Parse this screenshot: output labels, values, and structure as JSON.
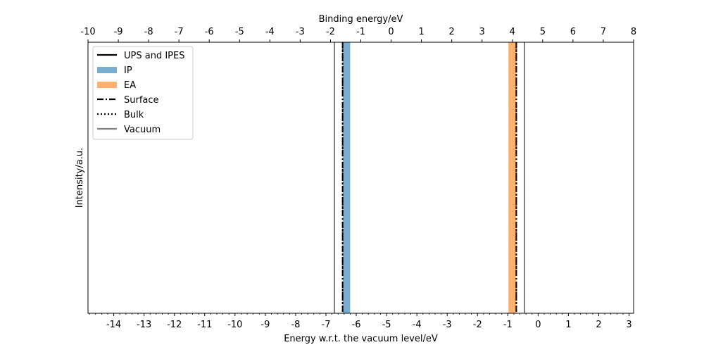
{
  "chart_data": {
    "type": "line",
    "title": "",
    "xlabel": "Energy w.r.t. the vacuum level/eV",
    "x2label": "Binding energy/eV",
    "ylabel": "Intensity/a.u.",
    "xlim": [
      -14.85,
      3.15
    ],
    "x2lim": [
      -10,
      8
    ],
    "x_ticks": [
      -14,
      -13,
      -12,
      -11,
      -10,
      -9,
      -8,
      -7,
      -6,
      -5,
      -4,
      -3,
      -2,
      -1,
      0,
      1,
      2,
      3
    ],
    "x_tick_labels": [
      "-14",
      "-13",
      "-12",
      "-11",
      "-10",
      "-9",
      "-8",
      "-7",
      "-6",
      "-5",
      "-4",
      "-3",
      "-2",
      "-1",
      "0",
      "1",
      "2",
      "3"
    ],
    "x2_ticks": [
      -10,
      -9,
      -8,
      -7,
      -6,
      -5,
      -4,
      -3,
      -2,
      -1,
      0,
      1,
      2,
      3,
      4,
      5,
      6,
      7,
      8
    ],
    "x2_tick_labels": [
      "-10",
      "-9",
      "-8",
      "-7",
      "-6",
      "-5",
      "-4",
      "-3",
      "-2",
      "-1",
      "0",
      "1",
      "2",
      "3",
      "4",
      "5",
      "6",
      "7",
      "8"
    ],
    "minor_step": 0.2,
    "grid": false,
    "legend_position": "upper-left",
    "legend": [
      {
        "label": "UPS and IPES",
        "style": "solid",
        "color": "#000000"
      },
      {
        "label": "IP",
        "style": "patch",
        "color": "#1f77b4"
      },
      {
        "label": "EA",
        "style": "patch",
        "color": "#ff7f0e"
      },
      {
        "label": "Surface",
        "style": "dashdot",
        "color": "#000000"
      },
      {
        "label": "Bulk",
        "style": "dotted",
        "color": "#000000"
      },
      {
        "label": "Vacuum",
        "style": "solid",
        "color": "#808080"
      }
    ],
    "bands": [
      {
        "name": "IP",
        "x_start": -6.45,
        "x_end": -6.2,
        "color": "#1f77b4",
        "alpha": 0.6
      },
      {
        "name": "EA",
        "x_start": -0.98,
        "x_end": -0.72,
        "color": "#ff7f0e",
        "alpha": 0.6
      }
    ],
    "vlines": [
      {
        "name": "Vacuum",
        "x": -6.72,
        "style": "solid",
        "color": "#808080"
      },
      {
        "name": "Surface",
        "x": -6.45,
        "style": "dashdot",
        "color": "#000000"
      },
      {
        "name": "Bulk",
        "x": -6.45,
        "style": "dotted",
        "color": "#000000"
      },
      {
        "name": "Surface",
        "x": -0.72,
        "style": "dashdot",
        "color": "#000000"
      },
      {
        "name": "Bulk",
        "x": -0.72,
        "style": "dotted",
        "color": "#000000"
      },
      {
        "name": "Vacuum",
        "x": -0.45,
        "style": "solid",
        "color": "#808080"
      }
    ],
    "series": []
  }
}
